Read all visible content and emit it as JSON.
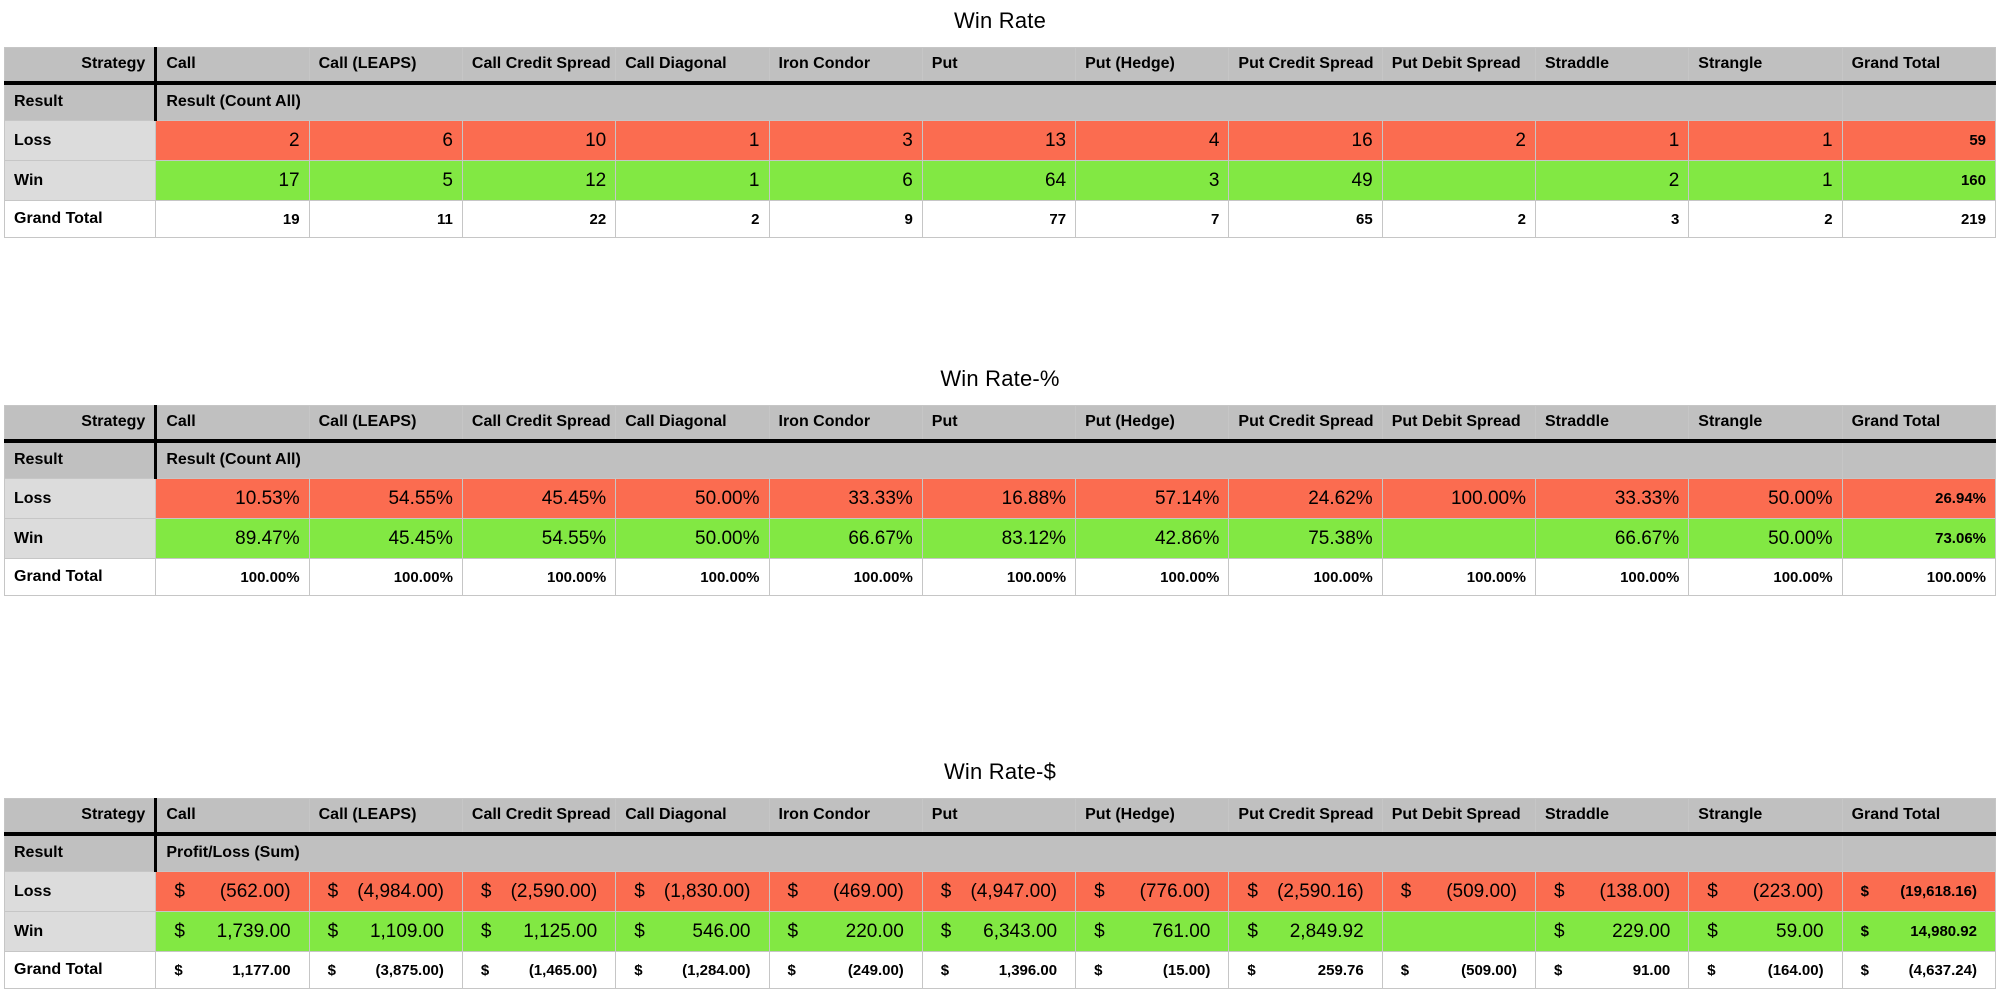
{
  "colors": {
    "loss": "#FB6C50",
    "win": "#82E843",
    "header": "#C0C0C0",
    "row_label": "#DCDCDC"
  },
  "columns": [
    "Strategy",
    "Call",
    "Call (LEAPS)",
    "Call Credit Spread",
    "Call Diagonal",
    "Iron Condor",
    "Put",
    "Put (Hedge)",
    "Put Credit Spread",
    "Put Debit Spread",
    "Straddle",
    "Strangle",
    "Grand Total"
  ],
  "tables": [
    {
      "title": "Win Rate",
      "row_header": "Result",
      "measure_label": "Result (Count All)",
      "currency": false,
      "rows": [
        {
          "label": "Loss",
          "kind": "loss",
          "values": [
            "2",
            "6",
            "10",
            "1",
            "3",
            "13",
            "4",
            "16",
            "2",
            "1",
            "1",
            "59"
          ]
        },
        {
          "label": "Win",
          "kind": "win",
          "values": [
            "17",
            "5",
            "12",
            "1",
            "6",
            "64",
            "3",
            "49",
            "",
            "2",
            "1",
            "160"
          ]
        },
        {
          "label": "Grand Total",
          "kind": "total",
          "values": [
            "19",
            "11",
            "22",
            "2",
            "9",
            "77",
            "7",
            "65",
            "2",
            "3",
            "2",
            "219"
          ]
        }
      ]
    },
    {
      "title": "Win Rate-%",
      "row_header": "Result",
      "measure_label": "Result (Count All)",
      "currency": false,
      "rows": [
        {
          "label": "Loss",
          "kind": "loss",
          "values": [
            "10.53%",
            "54.55%",
            "45.45%",
            "50.00%",
            "33.33%",
            "16.88%",
            "57.14%",
            "24.62%",
            "100.00%",
            "33.33%",
            "50.00%",
            "26.94%"
          ]
        },
        {
          "label": "Win",
          "kind": "win",
          "values": [
            "89.47%",
            "45.45%",
            "54.55%",
            "50.00%",
            "66.67%",
            "83.12%",
            "42.86%",
            "75.38%",
            "",
            "66.67%",
            "50.00%",
            "73.06%"
          ]
        },
        {
          "label": "Grand Total",
          "kind": "total",
          "values": [
            "100.00%",
            "100.00%",
            "100.00%",
            "100.00%",
            "100.00%",
            "100.00%",
            "100.00%",
            "100.00%",
            "100.00%",
            "100.00%",
            "100.00%",
            "100.00%"
          ]
        }
      ]
    },
    {
      "title": "Win Rate-$",
      "row_header": "Result",
      "measure_label": "Profit/Loss (Sum)",
      "currency": true,
      "currency_symbol": "$",
      "rows": [
        {
          "label": "Loss",
          "kind": "loss",
          "values": [
            "(562.00)",
            "(4,984.00)",
            "(2,590.00)",
            "(1,830.00)",
            "(469.00)",
            "(4,947.00)",
            "(776.00)",
            "(2,590.16)",
            "(509.00)",
            "(138.00)",
            "(223.00)",
            "(19,618.16)"
          ]
        },
        {
          "label": "Win",
          "kind": "win",
          "values": [
            "1,739.00",
            "1,109.00",
            "1,125.00",
            "546.00",
            "220.00",
            "6,343.00",
            "761.00",
            "2,849.92",
            "",
            "229.00",
            "59.00",
            "14,980.92"
          ]
        },
        {
          "label": "Grand Total",
          "kind": "total",
          "values": [
            "1,177.00",
            "(3,875.00)",
            "(1,465.00)",
            "(1,284.00)",
            "(249.00)",
            "1,396.00",
            "(15.00)",
            "259.76",
            "(509.00)",
            "91.00",
            "(164.00)",
            "(4,637.24)"
          ]
        }
      ]
    }
  ]
}
